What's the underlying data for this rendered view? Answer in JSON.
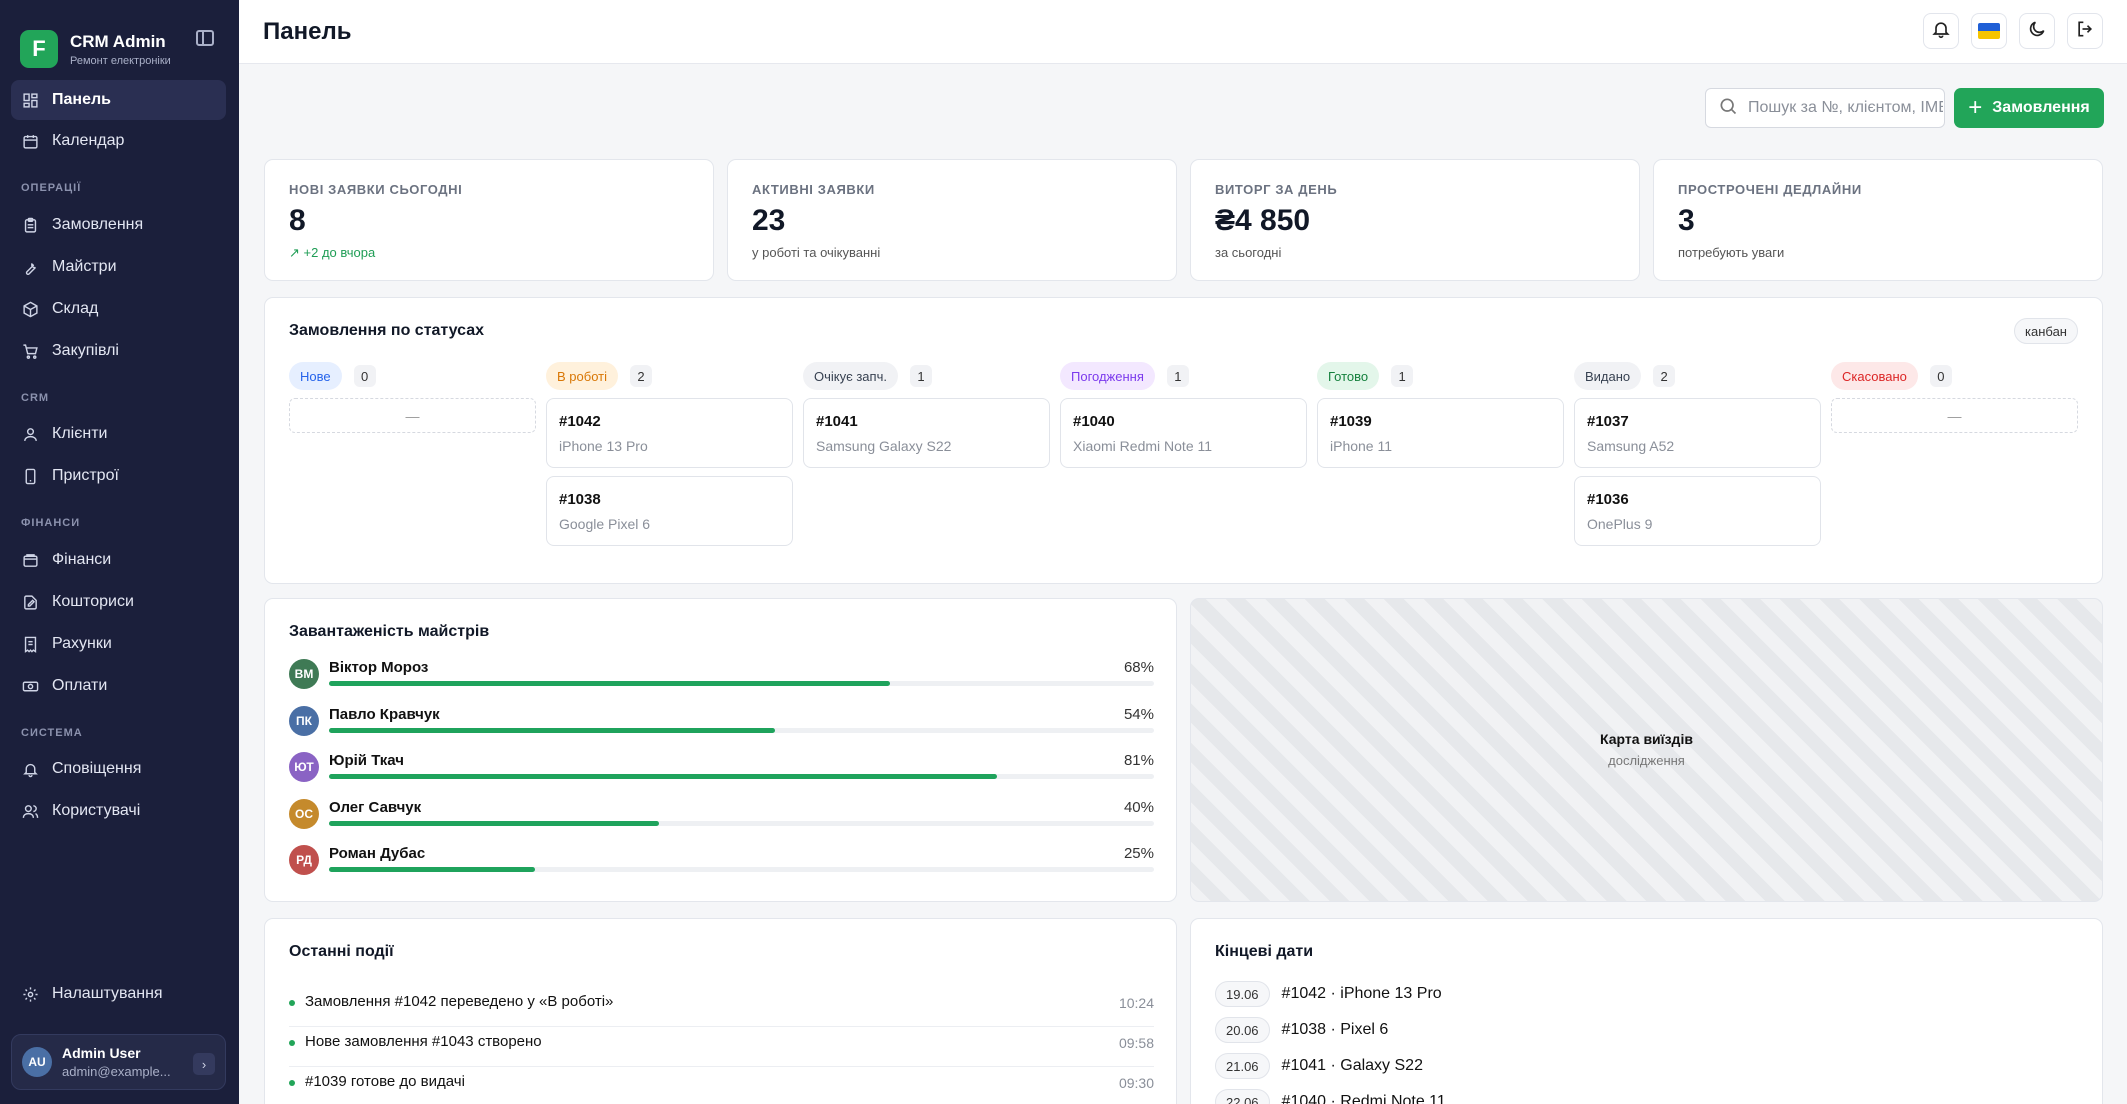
{
  "brand": {
    "title": "CRM Admin",
    "subtitle": "Ремонт електроніки",
    "logo_letter": "F"
  },
  "nav": {
    "items_main": [
      {
        "label": "Панель",
        "icon": "dashboard-icon"
      },
      {
        "label": "Календар",
        "icon": "calendar-icon"
      }
    ],
    "section_operations": "ОПЕРАЦІЇ",
    "items_operations": [
      {
        "label": "Замовлення"
      },
      {
        "label": "Майстри"
      },
      {
        "label": "Склад"
      },
      {
        "label": "Закупівлі"
      }
    ],
    "section_crm": "CRM",
    "items_crm": [
      {
        "label": "Клієнти"
      },
      {
        "label": "Пристрої"
      }
    ],
    "section_finance": "ФІНАНСИ",
    "items_finance": [
      {
        "label": "Фінанси"
      },
      {
        "label": "Кошториси"
      },
      {
        "label": "Рахунки"
      },
      {
        "label": "Оплати"
      }
    ],
    "section_system": "СИСТЕМА",
    "items_system": [
      {
        "label": "Сповіщення"
      },
      {
        "label": "Користувачі"
      }
    ],
    "settings": "Налаштування"
  },
  "user": {
    "initials": "AU",
    "name": "Admin User",
    "email": "admin@example..."
  },
  "header": {
    "title": "Панель"
  },
  "search": {
    "placeholder": "Пошук за №, клієнтом, IMEI"
  },
  "new_order_label": "Замовлення",
  "kpis": [
    {
      "label": "НОВІ ЗАЯВКИ СЬОГОДНІ",
      "value": "8",
      "sub": "+2 до вчора"
    },
    {
      "label": "АКТИВНІ ЗАЯВКИ",
      "value": "23",
      "sub": "у роботі та очікуванні"
    },
    {
      "label": "ВИТОРГ ЗА ДЕНЬ",
      "value": "₴4 850",
      "sub": "за сьогодні"
    },
    {
      "label": "ПРОСТРОЧЕНІ ДЕДЛАЙНИ",
      "value": "3",
      "sub": "потребують уваги"
    }
  ],
  "statuses": {
    "title": "Замовлення по статусах",
    "badge": "канбан",
    "empty": "—",
    "columns": [
      {
        "label": "Нове",
        "count": "0",
        "bg": "#e6efff",
        "fg": "#2563eb",
        "orders": []
      },
      {
        "label": "В роботі",
        "count": "2",
        "bg": "#fff1dc",
        "fg": "#d97706",
        "orders": [
          {
            "no": "#1042",
            "device": "iPhone 13 Pro"
          },
          {
            "no": "#1038",
            "device": "Google Pixel 6"
          }
        ]
      },
      {
        "label": "Очікує запч.",
        "count": "1",
        "bg": "#f1f2f5",
        "fg": "#374151",
        "orders": [
          {
            "no": "#1041",
            "device": "Samsung Galaxy S22"
          }
        ]
      },
      {
        "label": "Погодження",
        "count": "1",
        "bg": "#f3e8ff",
        "fg": "#7c3aed",
        "orders": [
          {
            "no": "#1040",
            "device": "Xiaomi Redmi Note 11"
          }
        ]
      },
      {
        "label": "Готово",
        "count": "1",
        "bg": "#e3f6ea",
        "fg": "#15803d",
        "orders": [
          {
            "no": "#1039",
            "device": "iPhone 11"
          }
        ]
      },
      {
        "label": "Видано",
        "count": "2",
        "bg": "#f1f2f5",
        "fg": "#374151",
        "orders": [
          {
            "no": "#1037",
            "device": "Samsung A52"
          },
          {
            "no": "#1036",
            "device": "OnePlus 9"
          }
        ]
      },
      {
        "label": "Скасовано",
        "count": "0",
        "bg": "#fde8e8",
        "fg": "#dc2626",
        "orders": []
      }
    ]
  },
  "workload": {
    "title": "Завантаженість майстрів",
    "workers": [
      {
        "initials": "ВМ",
        "name": "Віктор Мороз",
        "pct_label": "68%",
        "pct": 68,
        "color": "#3f7a55"
      },
      {
        "initials": "ПК",
        "name": "Павло Кравчук",
        "pct_label": "54%",
        "pct": 54,
        "color": "#4a6fa5"
      },
      {
        "initials": "ЮТ",
        "name": "Юрій Ткач",
        "pct_label": "81%",
        "pct": 81,
        "color": "#8a63c4"
      },
      {
        "initials": "ОС",
        "name": "Олег Савчук",
        "pct_label": "40%",
        "pct": 40,
        "color": "#c58a2c"
      },
      {
        "initials": "РД",
        "name": "Роман Дубас",
        "pct_label": "25%",
        "pct": 25,
        "color": "#c0504d"
      }
    ]
  },
  "map": {
    "title": "Карта виїздів",
    "subtitle": "дослідження"
  },
  "events": {
    "title": "Останні події",
    "items": [
      {
        "text": "Замовлення #1042 переведено у «В роботі»",
        "time": "10:24"
      },
      {
        "text": "Нове замовлення #1043 створено",
        "time": "09:58"
      },
      {
        "text": "#1039 готове до видачі",
        "time": "09:30"
      }
    ]
  },
  "deadlines": {
    "title": "Кінцеві дати",
    "items": [
      {
        "date": "19.06",
        "text": "#1042 · iPhone 13 Pro"
      },
      {
        "date": "20.06",
        "text": "#1038 · Pixel 6"
      },
      {
        "date": "21.06",
        "text": "#1041 · Galaxy S22"
      },
      {
        "date": "22.06",
        "text": "#1040 · Redmi Note 11"
      }
    ]
  }
}
